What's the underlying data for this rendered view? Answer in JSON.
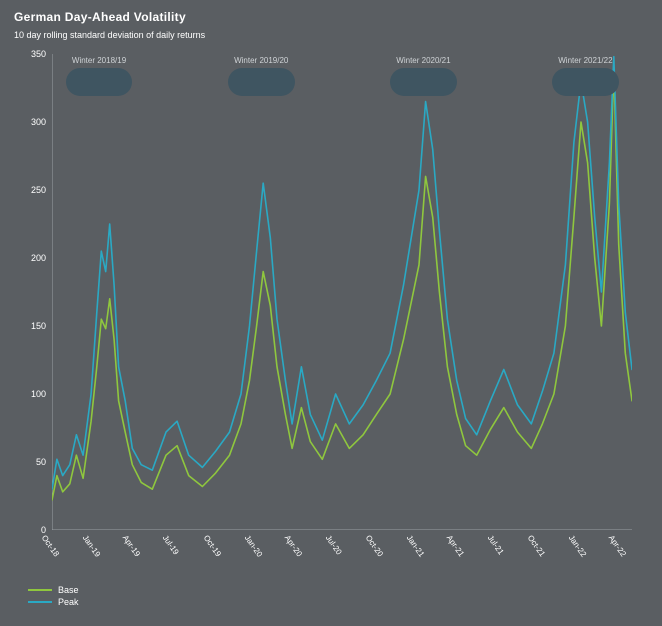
{
  "page_background": "#5a5e62",
  "title": "German Day-Ahead Volatility",
  "subtitle": "10 day rolling standard deviation of daily returns",
  "chart": {
    "type": "line",
    "background": "#5a5e62",
    "axis_color": "#9aa0a4",
    "tick_color": "#ffffff",
    "tick_fontsize": 9,
    "xtick_rotation_deg": 55,
    "ylim": [
      0,
      350
    ],
    "yticks": [
      0,
      50,
      100,
      150,
      200,
      250,
      300,
      350
    ],
    "x_start": "2018-10-01",
    "x_end": "2022-04-30",
    "xticks": [
      "Oct-18",
      "Jan-19",
      "Apr-19",
      "Jul-19",
      "Oct-19",
      "Jan-20",
      "Apr-20",
      "Jul-20",
      "Oct-20",
      "Jan-21",
      "Apr-21",
      "Jul-21",
      "Oct-21",
      "Jan-22",
      "Apr-22"
    ],
    "minor_x_monthly": true,
    "bands": [
      {
        "label": "Winter 2018/19",
        "from": "2018-11-01",
        "to": "2019-03-31",
        "color": "#3f5561"
      },
      {
        "label": "Winter 2019/20",
        "from": "2019-11-01",
        "to": "2020-03-31",
        "color": "#3f5561"
      },
      {
        "label": "Winter 2020/21",
        "from": "2020-11-01",
        "to": "2021-03-31",
        "color": "#3f5561"
      },
      {
        "label": "Winter 2021/22",
        "from": "2021-11-01",
        "to": "2022-03-31",
        "color": "#3f5561"
      }
    ],
    "series": [
      {
        "name": "Base",
        "color": "#8fc73e",
        "line_width": 1.6,
        "points": [
          [
            "2018-10-01",
            22
          ],
          [
            "2018-10-12",
            40
          ],
          [
            "2018-10-25",
            28
          ],
          [
            "2018-11-10",
            34
          ],
          [
            "2018-11-25",
            55
          ],
          [
            "2018-12-10",
            38
          ],
          [
            "2018-12-28",
            80
          ],
          [
            "2019-01-10",
            120
          ],
          [
            "2019-01-20",
            155
          ],
          [
            "2019-01-30",
            148
          ],
          [
            "2019-02-08",
            170
          ],
          [
            "2019-02-18",
            140
          ],
          [
            "2019-02-28",
            95
          ],
          [
            "2019-03-15",
            72
          ],
          [
            "2019-03-31",
            48
          ],
          [
            "2019-04-20",
            35
          ],
          [
            "2019-05-15",
            30
          ],
          [
            "2019-06-15",
            55
          ],
          [
            "2019-07-10",
            62
          ],
          [
            "2019-08-05",
            40
          ],
          [
            "2019-09-05",
            32
          ],
          [
            "2019-10-05",
            42
          ],
          [
            "2019-11-05",
            55
          ],
          [
            "2019-12-01",
            78
          ],
          [
            "2019-12-20",
            110
          ],
          [
            "2020-01-05",
            150
          ],
          [
            "2020-01-20",
            190
          ],
          [
            "2020-02-05",
            165
          ],
          [
            "2020-02-20",
            120
          ],
          [
            "2020-03-10",
            85
          ],
          [
            "2020-03-25",
            60
          ],
          [
            "2020-04-15",
            90
          ],
          [
            "2020-05-05",
            65
          ],
          [
            "2020-06-01",
            52
          ],
          [
            "2020-07-01",
            78
          ],
          [
            "2020-08-01",
            60
          ],
          [
            "2020-09-01",
            70
          ],
          [
            "2020-10-01",
            85
          ],
          [
            "2020-11-01",
            100
          ],
          [
            "2020-12-01",
            140
          ],
          [
            "2021-01-05",
            195
          ],
          [
            "2021-01-20",
            260
          ],
          [
            "2021-02-05",
            230
          ],
          [
            "2021-02-20",
            175
          ],
          [
            "2021-03-10",
            120
          ],
          [
            "2021-03-31",
            85
          ],
          [
            "2021-04-20",
            62
          ],
          [
            "2021-05-15",
            55
          ],
          [
            "2021-06-15",
            74
          ],
          [
            "2021-07-15",
            90
          ],
          [
            "2021-08-15",
            72
          ],
          [
            "2021-09-15",
            60
          ],
          [
            "2021-10-10",
            78
          ],
          [
            "2021-11-05",
            100
          ],
          [
            "2021-12-01",
            150
          ],
          [
            "2021-12-20",
            230
          ],
          [
            "2022-01-05",
            300
          ],
          [
            "2022-01-20",
            270
          ],
          [
            "2022-02-05",
            200
          ],
          [
            "2022-02-20",
            150
          ],
          [
            "2022-03-10",
            240
          ],
          [
            "2022-03-20",
            340
          ],
          [
            "2022-03-31",
            210
          ],
          [
            "2022-04-15",
            130
          ],
          [
            "2022-04-30",
            95
          ]
        ]
      },
      {
        "name": "Peak",
        "color": "#2aa9c4",
        "line_width": 1.6,
        "points": [
          [
            "2018-10-01",
            30
          ],
          [
            "2018-10-12",
            52
          ],
          [
            "2018-10-25",
            40
          ],
          [
            "2018-11-10",
            48
          ],
          [
            "2018-11-25",
            70
          ],
          [
            "2018-12-10",
            55
          ],
          [
            "2018-12-28",
            100
          ],
          [
            "2019-01-10",
            160
          ],
          [
            "2019-01-20",
            205
          ],
          [
            "2019-01-30",
            190
          ],
          [
            "2019-02-08",
            225
          ],
          [
            "2019-02-18",
            180
          ],
          [
            "2019-02-28",
            120
          ],
          [
            "2019-03-15",
            95
          ],
          [
            "2019-03-31",
            60
          ],
          [
            "2019-04-20",
            48
          ],
          [
            "2019-05-15",
            44
          ],
          [
            "2019-06-15",
            72
          ],
          [
            "2019-07-10",
            80
          ],
          [
            "2019-08-05",
            55
          ],
          [
            "2019-09-05",
            46
          ],
          [
            "2019-10-05",
            58
          ],
          [
            "2019-11-05",
            72
          ],
          [
            "2019-12-01",
            100
          ],
          [
            "2019-12-20",
            150
          ],
          [
            "2020-01-05",
            205
          ],
          [
            "2020-01-20",
            255
          ],
          [
            "2020-02-05",
            215
          ],
          [
            "2020-02-20",
            155
          ],
          [
            "2020-03-10",
            110
          ],
          [
            "2020-03-25",
            78
          ],
          [
            "2020-04-15",
            120
          ],
          [
            "2020-05-05",
            85
          ],
          [
            "2020-06-01",
            66
          ],
          [
            "2020-07-01",
            100
          ],
          [
            "2020-08-01",
            78
          ],
          [
            "2020-09-01",
            92
          ],
          [
            "2020-10-01",
            110
          ],
          [
            "2020-11-01",
            130
          ],
          [
            "2020-12-01",
            180
          ],
          [
            "2021-01-05",
            250
          ],
          [
            "2021-01-20",
            315
          ],
          [
            "2021-02-05",
            280
          ],
          [
            "2021-02-20",
            220
          ],
          [
            "2021-03-10",
            155
          ],
          [
            "2021-03-31",
            110
          ],
          [
            "2021-04-20",
            82
          ],
          [
            "2021-05-15",
            70
          ],
          [
            "2021-06-15",
            95
          ],
          [
            "2021-07-15",
            118
          ],
          [
            "2021-08-15",
            92
          ],
          [
            "2021-09-15",
            78
          ],
          [
            "2021-10-10",
            102
          ],
          [
            "2021-11-05",
            130
          ],
          [
            "2021-12-01",
            195
          ],
          [
            "2021-12-20",
            285
          ],
          [
            "2022-01-05",
            330
          ],
          [
            "2022-01-20",
            300
          ],
          [
            "2022-02-05",
            230
          ],
          [
            "2022-02-20",
            175
          ],
          [
            "2022-03-10",
            270
          ],
          [
            "2022-03-20",
            348
          ],
          [
            "2022-03-31",
            240
          ],
          [
            "2022-04-15",
            160
          ],
          [
            "2022-04-30",
            118
          ]
        ]
      }
    ],
    "legend_position": "bottom-left"
  },
  "legend": {
    "items": [
      {
        "label": "Base",
        "color": "#8fc73e"
      },
      {
        "label": "Peak",
        "color": "#2aa9c4"
      }
    ]
  }
}
